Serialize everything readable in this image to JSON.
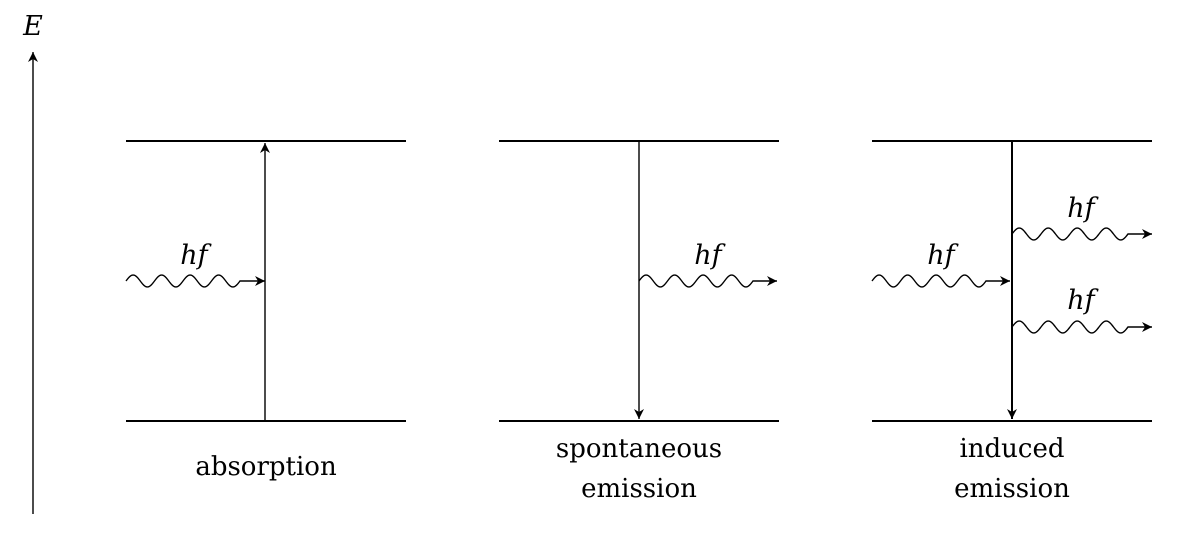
{
  "axis": {
    "label": "E"
  },
  "panels": [
    {
      "id": "absorption",
      "caption": [
        "absorption"
      ],
      "photons": [
        {
          "label": "hf"
        }
      ]
    },
    {
      "id": "spontaneous",
      "caption": [
        "spontaneous",
        "emission"
      ],
      "photons": [
        {
          "label": "hf"
        }
      ]
    },
    {
      "id": "induced",
      "caption": [
        "induced",
        "emission"
      ],
      "photons": [
        {
          "label": "hf"
        },
        {
          "label": "hf"
        },
        {
          "label": "hf"
        }
      ]
    }
  ]
}
